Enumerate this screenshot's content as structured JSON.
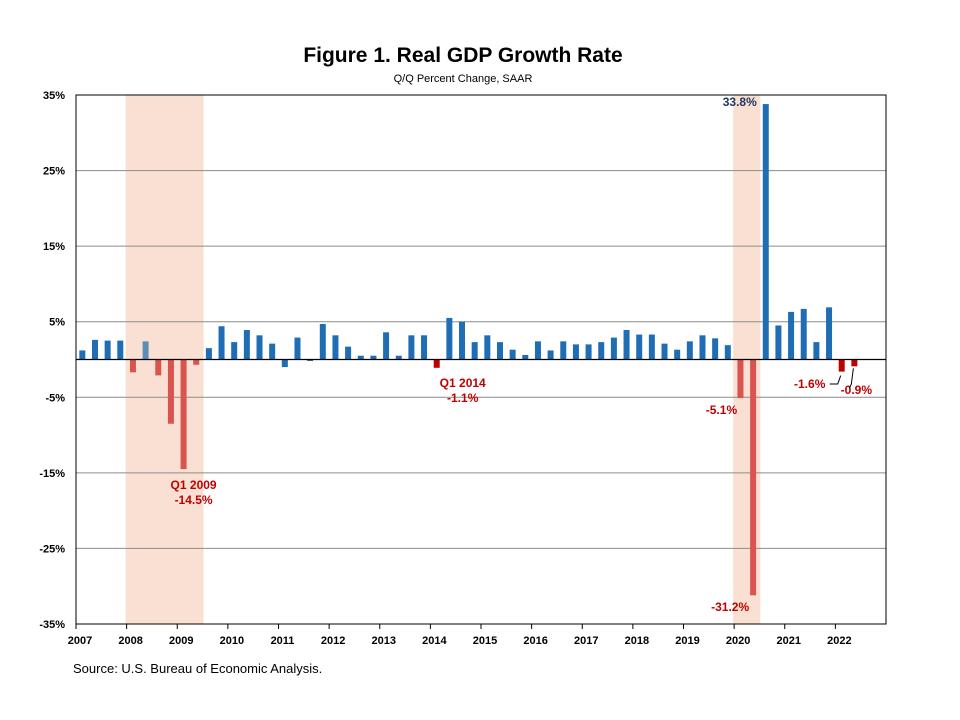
{
  "chart_data": {
    "type": "bar",
    "title": "Figure 1. Real GDP Growth Rate",
    "subtitle": "Q/Q Percent Change, SAAR",
    "source": "Source: U.S. Bureau of Economic Analysis.",
    "ylim": [
      -35,
      35
    ],
    "y_ticks": [
      35,
      25,
      15,
      5,
      -5,
      -15,
      -25,
      -35
    ],
    "y_tick_labels": [
      "35%",
      "25%",
      "15%",
      "5%",
      "-5%",
      "-15%",
      "-25%",
      "-35%"
    ],
    "x_year_labels": [
      "2007",
      "2008",
      "2009",
      "2010",
      "2011",
      "2012",
      "2013",
      "2014",
      "2015",
      "2016",
      "2017",
      "2018",
      "2019",
      "2020",
      "2021",
      "2022"
    ],
    "gridlines": true,
    "recession_shading": [
      {
        "start": "2008 Q1",
        "end": "2009 Q2"
      },
      {
        "start": "2020 Q1",
        "end": "2020 Q2"
      }
    ],
    "quarters": [
      "2007 Q1",
      "2007 Q2",
      "2007 Q3",
      "2007 Q4",
      "2008 Q1",
      "2008 Q2",
      "2008 Q3",
      "2008 Q4",
      "2009 Q1",
      "2009 Q2",
      "2009 Q3",
      "2009 Q4",
      "2010 Q1",
      "2010 Q2",
      "2010 Q3",
      "2010 Q4",
      "2011 Q1",
      "2011 Q2",
      "2011 Q3",
      "2011 Q4",
      "2012 Q1",
      "2012 Q2",
      "2012 Q3",
      "2012 Q4",
      "2013 Q1",
      "2013 Q2",
      "2013 Q3",
      "2013 Q4",
      "2014 Q1",
      "2014 Q2",
      "2014 Q3",
      "2014 Q4",
      "2015 Q1",
      "2015 Q2",
      "2015 Q3",
      "2015 Q4",
      "2016 Q1",
      "2016 Q2",
      "2016 Q3",
      "2016 Q4",
      "2017 Q1",
      "2017 Q2",
      "2017 Q3",
      "2017 Q4",
      "2018 Q1",
      "2018 Q2",
      "2018 Q3",
      "2018 Q4",
      "2019 Q1",
      "2019 Q2",
      "2019 Q3",
      "2019 Q4",
      "2020 Q1",
      "2020 Q2",
      "2020 Q3",
      "2020 Q4",
      "2021 Q1",
      "2021 Q2",
      "2021 Q3",
      "2021 Q4",
      "2022 Q1",
      "2022 Q2"
    ],
    "values": [
      1.2,
      2.6,
      2.5,
      2.5,
      -1.7,
      2.4,
      -2.1,
      -8.5,
      -14.5,
      -0.7,
      1.5,
      4.4,
      2.3,
      3.9,
      3.2,
      2.1,
      -1.0,
      2.9,
      -0.1,
      4.7,
      3.2,
      1.7,
      0.5,
      0.5,
      3.6,
      0.5,
      3.2,
      3.2,
      -1.1,
      5.5,
      5.0,
      2.3,
      3.2,
      2.3,
      1.3,
      0.6,
      2.4,
      1.2,
      2.4,
      2.0,
      2.0,
      2.3,
      2.9,
      3.9,
      3.3,
      3.3,
      2.1,
      1.3,
      2.4,
      3.2,
      2.8,
      1.9,
      -5.1,
      -31.2,
      33.8,
      4.5,
      6.3,
      6.7,
      2.3,
      6.9,
      -1.6,
      -0.9
    ],
    "colors": {
      "positive": "#1F6DB5",
      "negative_recession": "#D9534F",
      "negative_recent": "#C00000",
      "highlight_2008q2": "#5B8DB8",
      "recession_band": "#F8D6C3",
      "annotation_red": "#C00000",
      "annotation_navy": "#1F3864",
      "grid": "#8C8C8C"
    },
    "annotations": [
      {
        "quarter": "2009 Q1",
        "lines": [
          "Q1 2009",
          "-14.5%"
        ],
        "color": "#C00000"
      },
      {
        "quarter": "2014 Q1",
        "lines": [
          "Q1 2014",
          "-1.1%"
        ],
        "color": "#C00000"
      },
      {
        "quarter": "2020 Q1",
        "lines": [
          "-5.1%"
        ],
        "color": "#C00000"
      },
      {
        "quarter": "2020 Q2",
        "lines": [
          "-31.2%"
        ],
        "color": "#C00000"
      },
      {
        "quarter": "2020 Q3",
        "lines": [
          "33.8%"
        ],
        "color": "#1F3864"
      },
      {
        "quarter": "2022 Q1",
        "lines": [
          "-1.6%"
        ],
        "color": "#C00000"
      },
      {
        "quarter": "2022 Q2",
        "lines": [
          "-0.9%"
        ],
        "color": "#C00000"
      }
    ]
  }
}
